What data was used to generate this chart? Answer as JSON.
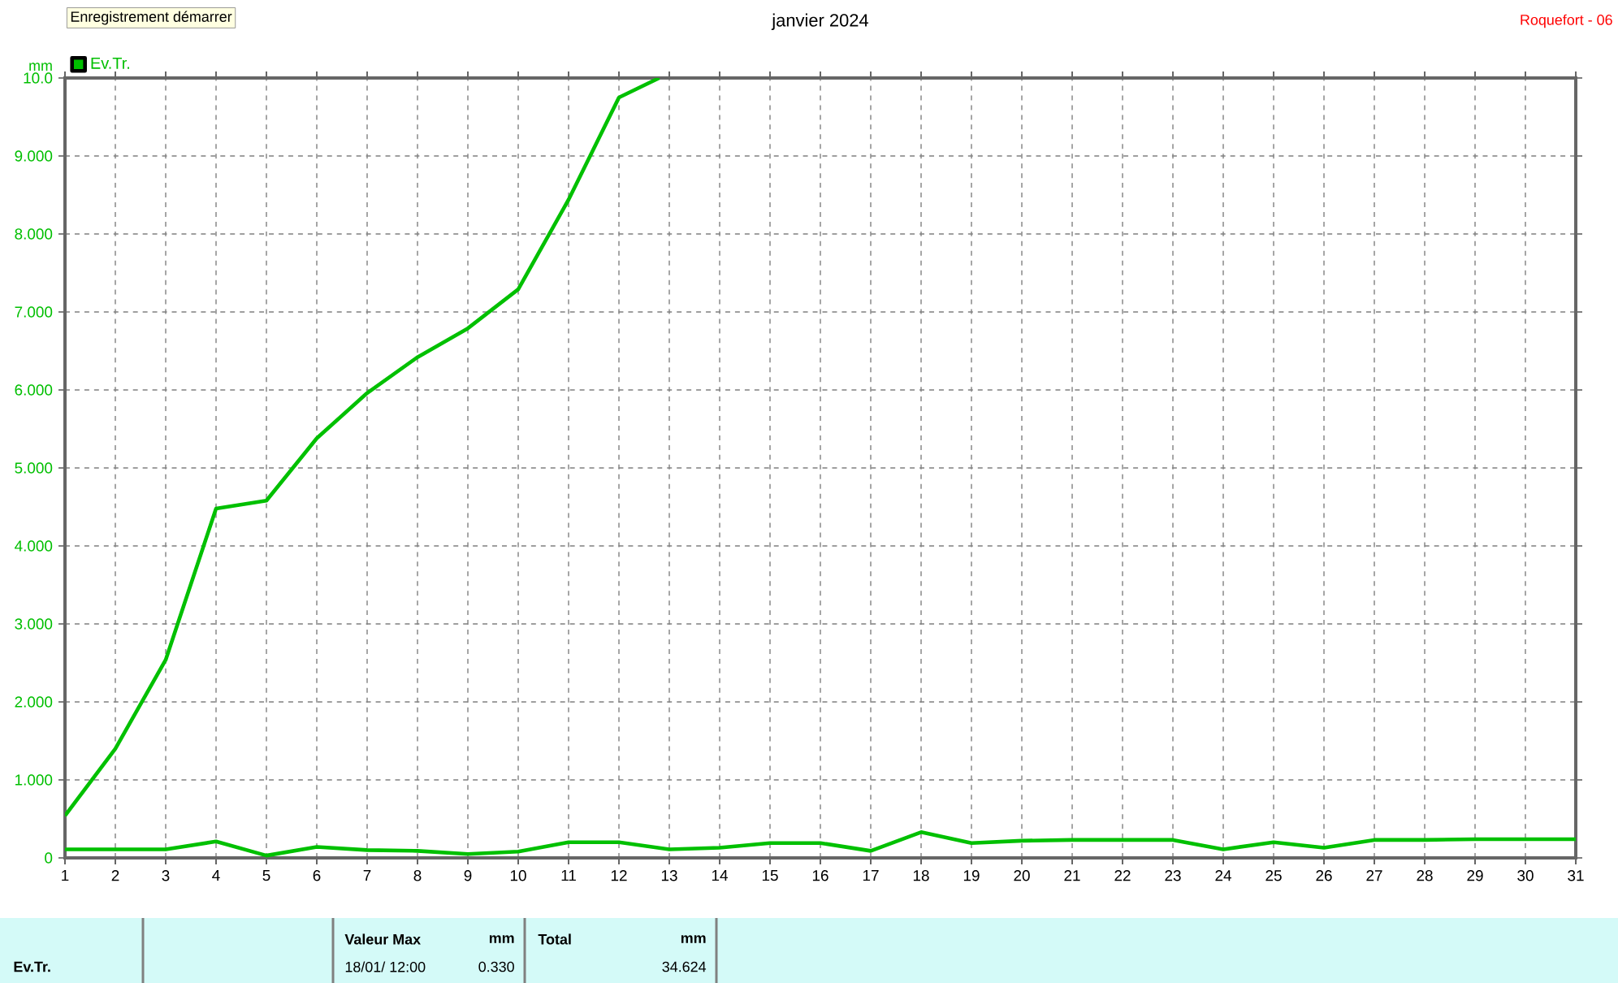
{
  "chart_data": {
    "type": "line",
    "title": "janvier 2024",
    "ylabel": "mm",
    "annotations": [
      "Enregistrement démarrer",
      "Roquefort - 06",
      "Ev.Tr.",
      "Valeur Max",
      "mm",
      "18/01/ 12:00",
      "0.330",
      "Total",
      "mm",
      "34.624"
    ],
    "x": [
      1,
      2,
      3,
      4,
      5,
      6,
      7,
      8,
      9,
      10,
      11,
      12,
      13,
      14,
      15,
      16,
      17,
      18,
      19,
      20,
      21,
      22,
      23,
      24,
      25,
      26,
      27,
      28,
      29,
      30,
      31
    ],
    "series": [
      {
        "color": "#00c000",
        "x": [
          1,
          2,
          3,
          4,
          5,
          6,
          7,
          8,
          9,
          10,
          11,
          12,
          12.8
        ],
        "values": [
          0.54,
          1.4,
          2.54,
          4.48,
          4.58,
          5.38,
          5.96,
          6.42,
          6.79,
          7.29,
          8.44,
          9.75,
          10.0
        ]
      },
      {
        "name": "Ev.Tr.",
        "color": "#00c000",
        "values": [
          0.11,
          0.11,
          0.11,
          0.21,
          0.03,
          0.14,
          0.1,
          0.09,
          0.05,
          0.08,
          0.2,
          0.2,
          0.11,
          0.13,
          0.19,
          0.19,
          0.09,
          0.33,
          0.19,
          0.22,
          0.23,
          0.23,
          0.23,
          0.11,
          0.2,
          0.13,
          0.23,
          0.23,
          0.24,
          0.24,
          0.24
        ]
      }
    ],
    "xlim": [
      1,
      31
    ],
    "ylim": [
      0,
      10
    ],
    "xticks": [
      1,
      2,
      3,
      4,
      5,
      6,
      7,
      8,
      9,
      10,
      11,
      12,
      13,
      14,
      15,
      16,
      17,
      18,
      19,
      20,
      21,
      22,
      23,
      24,
      25,
      26,
      27,
      28,
      29,
      30,
      31
    ],
    "yticks": [
      0,
      {
        "value": 1,
        "label": "1.000"
      },
      {
        "value": 2,
        "label": "2.000"
      },
      {
        "value": 3,
        "label": "3.000"
      },
      {
        "value": 4,
        "label": "4.000"
      },
      {
        "value": 5,
        "label": "5.000"
      },
      {
        "value": 6,
        "label": "6.000"
      },
      {
        "value": 7,
        "label": "7.000"
      },
      {
        "value": 8,
        "label": "8.000"
      },
      {
        "value": 9,
        "label": "9.000"
      },
      {
        "value": 10,
        "label": "10.0"
      }
    ],
    "grid": true,
    "legend": "top left",
    "marker": "none",
    "line_style": "solid"
  }
}
